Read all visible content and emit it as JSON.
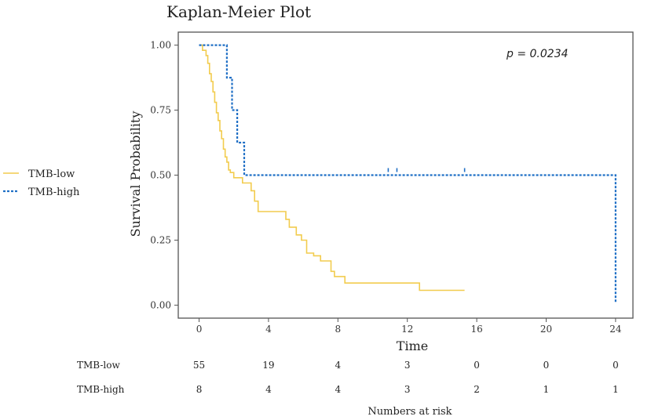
{
  "chart_data": {
    "type": "line",
    "subtype": "kaplan-meier",
    "title": "Kaplan-Meier Plot",
    "xlabel": "Time",
    "ylabel": "Survival Probability",
    "annotation": "p = 0.0234",
    "xlim": [
      -1.2,
      25
    ],
    "ylim": [
      -0.05,
      1.05
    ],
    "x_ticks": [
      0,
      4,
      8,
      12,
      16,
      20,
      24
    ],
    "x_tick_labels": [
      "0",
      "4",
      "8",
      "12",
      "16",
      "20",
      "24"
    ],
    "y_ticks": [
      0,
      0.25,
      0.5,
      0.75,
      1
    ],
    "y_tick_labels": [
      "0.00",
      "0.25",
      "0.50",
      "0.75",
      "1.00"
    ],
    "legend_position": "left",
    "series": [
      {
        "name": "TMB-low",
        "color": "#F2CC4E",
        "dash": "solid",
        "steps": [
          [
            0,
            1.0
          ],
          [
            0.2,
            0.98
          ],
          [
            0.4,
            0.96
          ],
          [
            0.5,
            0.93
          ],
          [
            0.6,
            0.89
          ],
          [
            0.7,
            0.86
          ],
          [
            0.8,
            0.82
          ],
          [
            0.9,
            0.78
          ],
          [
            1.0,
            0.74
          ],
          [
            1.1,
            0.71
          ],
          [
            1.2,
            0.67
          ],
          [
            1.3,
            0.64
          ],
          [
            1.4,
            0.6
          ],
          [
            1.5,
            0.57
          ],
          [
            1.6,
            0.55
          ],
          [
            1.7,
            0.52
          ],
          [
            1.8,
            0.51
          ],
          [
            2.0,
            0.49
          ],
          [
            2.5,
            0.47
          ],
          [
            3.0,
            0.44
          ],
          [
            3.2,
            0.4
          ],
          [
            3.4,
            0.36
          ],
          [
            5.0,
            0.33
          ],
          [
            5.2,
            0.3
          ],
          [
            5.6,
            0.27
          ],
          [
            5.9,
            0.25
          ],
          [
            6.2,
            0.2
          ],
          [
            6.6,
            0.19
          ],
          [
            7.0,
            0.17
          ],
          [
            7.6,
            0.13
          ],
          [
            7.8,
            0.11
          ],
          [
            8.4,
            0.085
          ],
          [
            12.7,
            0.057
          ],
          [
            15.3,
            0.057
          ]
        ],
        "censored": []
      },
      {
        "name": "TMB-high",
        "color": "#1F6FC5",
        "dash": "dotted",
        "steps": [
          [
            0,
            1.0
          ],
          [
            1.6,
            0.875
          ],
          [
            1.9,
            0.75
          ],
          [
            2.2,
            0.625
          ],
          [
            2.6,
            0.5
          ],
          [
            24.0,
            0.5
          ],
          [
            24.0,
            0.01
          ]
        ],
        "censored": [
          [
            10.9,
            0.5
          ],
          [
            11.4,
            0.5
          ],
          [
            15.3,
            0.5
          ]
        ]
      }
    ],
    "risk_table": {
      "title": "Numbers at risk",
      "times": [
        0,
        4,
        8,
        12,
        16,
        20,
        24
      ],
      "rows": [
        {
          "group": "TMB-low",
          "counts": [
            "55",
            "19",
            "4",
            "3",
            "0",
            "0",
            "0"
          ]
        },
        {
          "group": "TMB-high",
          "counts": [
            "8",
            "4",
            "4",
            "3",
            "2",
            "1",
            "1"
          ]
        }
      ]
    }
  }
}
